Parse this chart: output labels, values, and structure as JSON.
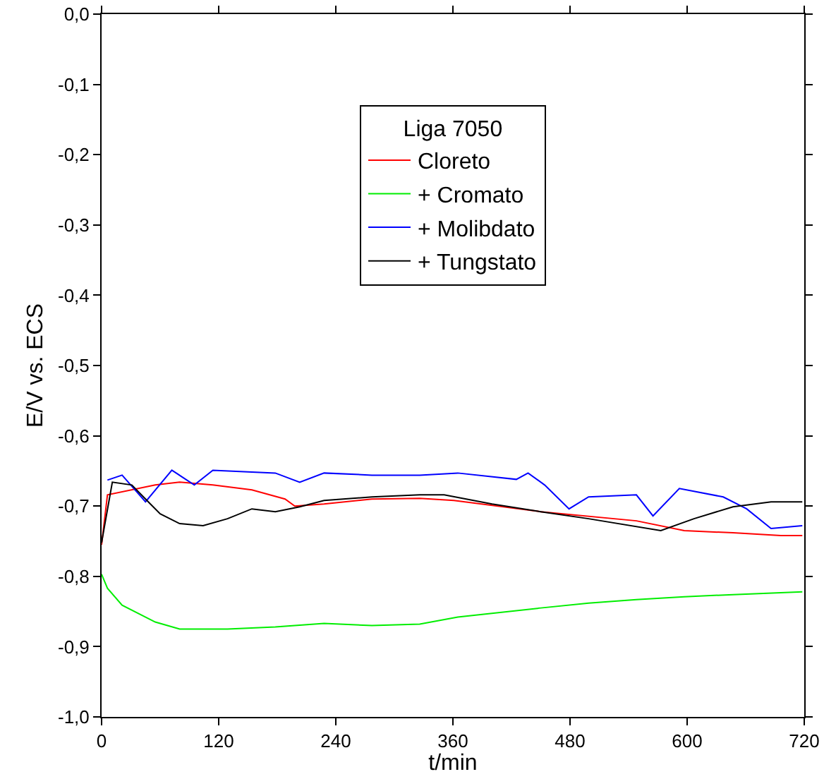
{
  "chart_data": {
    "type": "line",
    "xlabel": "t/min",
    "ylabel": "E/V vs. ECS",
    "legend_title": "Liga 7050",
    "legend": "top",
    "grid": false,
    "marker": "none",
    "line_style": "solid",
    "xlim": [
      0,
      720
    ],
    "xticks": [
      0,
      120,
      240,
      360,
      480,
      600,
      720
    ],
    "ylim": [
      -1.0,
      0.0
    ],
    "yticks": [
      {
        "value": 0,
        "label": "0,0"
      },
      {
        "value": -0.1,
        "label": "-0,1"
      },
      {
        "value": -0.2,
        "label": "-0,2"
      },
      {
        "value": -0.3,
        "label": "-0,3"
      },
      {
        "value": -0.4,
        "label": "-0,4"
      },
      {
        "value": -0.5,
        "label": "-0,5"
      },
      {
        "value": -0.6,
        "label": "-0,6"
      },
      {
        "value": -0.7,
        "label": "-0,7"
      },
      {
        "value": -0.8,
        "label": "-0,8"
      },
      {
        "value": -0.9,
        "label": "-0,9"
      },
      {
        "value": -1.0,
        "label": "-1,0"
      }
    ],
    "series": [
      {
        "name": "Cloreto",
        "color": "#ff0000",
        "x": [
          0,
          6,
          55,
          80,
          114,
          154,
          188,
          198,
          228,
          277,
          326,
          361,
          450,
          548,
          597,
          647,
          696,
          718
        ],
        "values": [
          -0.755,
          -0.684,
          -0.67,
          -0.666,
          -0.67,
          -0.677,
          -0.69,
          -0.7,
          -0.697,
          -0.69,
          -0.689,
          -0.692,
          -0.708,
          -0.721,
          -0.735,
          -0.738,
          -0.742,
          -0.742
        ]
      },
      {
        "name": "+ Cromato",
        "color": "#00ee00",
        "x": [
          0,
          6,
          21,
          55,
          80,
          129,
          178,
          228,
          277,
          326,
          365,
          450,
          499,
          548,
          597,
          647,
          718
        ],
        "values": [
          -0.797,
          -0.817,
          -0.841,
          -0.865,
          -0.875,
          -0.875,
          -0.872,
          -0.867,
          -0.87,
          -0.868,
          -0.858,
          -0.845,
          -0.838,
          -0.833,
          -0.829,
          -0.826,
          -0.822
        ]
      },
      {
        "name": "+ Molibdato",
        "color": "#0000ff",
        "x": [
          6,
          21,
          45,
          72,
          95,
          114,
          178,
          203,
          228,
          277,
          326,
          365,
          425,
          437,
          454,
          479,
          499,
          548,
          565,
          592,
          637,
          661,
          686,
          718
        ],
        "values": [
          -0.663,
          -0.656,
          -0.694,
          -0.649,
          -0.67,
          -0.649,
          -0.653,
          -0.666,
          -0.653,
          -0.656,
          -0.656,
          -0.653,
          -0.662,
          -0.653,
          -0.67,
          -0.704,
          -0.687,
          -0.684,
          -0.714,
          -0.675,
          -0.687,
          -0.704,
          -0.732,
          -0.728
        ]
      },
      {
        "name": "+ Tungstato",
        "color": "#000000",
        "x": [
          0,
          11,
          31,
          50,
          60,
          80,
          104,
          129,
          154,
          178,
          203,
          228,
          277,
          326,
          351,
          400,
          450,
          499,
          573,
          607,
          647,
          686,
          718
        ],
        "values": [
          -0.752,
          -0.666,
          -0.67,
          -0.697,
          -0.711,
          -0.725,
          -0.728,
          -0.718,
          -0.704,
          -0.708,
          -0.701,
          -0.692,
          -0.687,
          -0.684,
          -0.684,
          -0.697,
          -0.708,
          -0.718,
          -0.735,
          -0.718,
          -0.701,
          -0.694,
          -0.694
        ]
      }
    ]
  }
}
